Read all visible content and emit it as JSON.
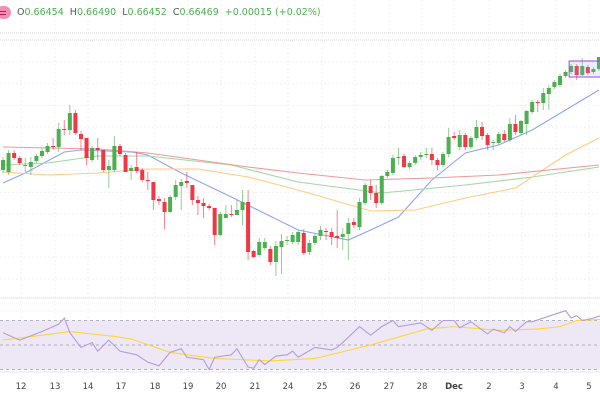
{
  "legend": {
    "open_label": "O",
    "open": "0.66454",
    "high_label": "H",
    "high": "0.66490",
    "low_label": "L",
    "low": "0.66452",
    "close_label": "C",
    "close": "0.66469",
    "change": "+0.00015 (+0.02%)",
    "symbol_icon": "symbol-badge-icon"
  },
  "colors": {
    "up": "#4caf50",
    "down": "#f23645",
    "ma_fast": "#90a4f4",
    "ma_mid": "#a5d6a7",
    "ma_slow": "#ffcc80",
    "ma_long": "#ef9a9a",
    "rsi": "#b39ddb",
    "rsi_ma": "#fdd835",
    "rsi_band": "#ede7f6"
  },
  "chart_data": [
    {
      "type": "candlestick",
      "x_tick_labels": [
        "12",
        "13",
        "14",
        "17",
        "18",
        "19",
        "20",
        "21",
        "24",
        "25",
        "26",
        "27",
        "28",
        "Dec",
        "2",
        "3",
        "4",
        "5"
      ],
      "candles": [
        [
          0.6532,
          0.6545,
          0.6529,
          0.6542
        ],
        [
          0.653,
          0.6552,
          0.6527,
          0.6549
        ],
        [
          0.6549,
          0.6552,
          0.6542,
          0.6544
        ],
        [
          0.6544,
          0.6546,
          0.6537,
          0.6539
        ],
        [
          0.6536,
          0.6544,
          0.653,
          0.6537
        ],
        [
          0.6535,
          0.6545,
          0.6527,
          0.654
        ],
        [
          0.6541,
          0.6548,
          0.6539,
          0.6546
        ],
        [
          0.6546,
          0.6554,
          0.6544,
          0.6551
        ],
        [
          0.655,
          0.6559,
          0.6548,
          0.6556
        ],
        [
          0.6556,
          0.6564,
          0.6552,
          0.6555
        ],
        [
          0.6555,
          0.6579,
          0.655,
          0.6573
        ],
        [
          0.6573,
          0.6582,
          0.6567,
          0.6572
        ],
        [
          0.6572,
          0.6597,
          0.6567,
          0.6589
        ],
        [
          0.6589,
          0.6592,
          0.6567,
          0.6569
        ],
        [
          0.6568,
          0.6571,
          0.6552,
          0.6563
        ],
        [
          0.6564,
          0.6564,
          0.6537,
          0.6544
        ],
        [
          0.6542,
          0.6556,
          0.654,
          0.6554
        ],
        [
          0.6554,
          0.6564,
          0.6542,
          0.6552
        ],
        [
          0.6552,
          0.6552,
          0.653,
          0.6532
        ],
        [
          0.6532,
          0.6542,
          0.6514,
          0.6536
        ],
        [
          0.6532,
          0.6566,
          0.653,
          0.6556
        ],
        [
          0.6556,
          0.6558,
          0.6546,
          0.6548
        ],
        [
          0.6547,
          0.6549,
          0.653,
          0.653
        ],
        [
          0.6531,
          0.6537,
          0.6522,
          0.6534
        ],
        [
          0.6535,
          0.655,
          0.6529,
          0.6531
        ],
        [
          0.6532,
          0.6534,
          0.652,
          0.6522
        ],
        [
          0.6522,
          0.653,
          0.6512,
          0.6521
        ],
        [
          0.652,
          0.652,
          0.6492,
          0.6502
        ],
        [
          0.6503,
          0.6506,
          0.6497,
          0.6501
        ],
        [
          0.65,
          0.6504,
          0.6473,
          0.649
        ],
        [
          0.649,
          0.6507,
          0.6489,
          0.6505
        ],
        [
          0.6505,
          0.6522,
          0.6502,
          0.6517
        ],
        [
          0.6516,
          0.6523,
          0.6492,
          0.652
        ],
        [
          0.6521,
          0.653,
          0.6514,
          0.6519
        ],
        [
          0.6517,
          0.6517,
          0.6497,
          0.6502
        ],
        [
          0.6502,
          0.6506,
          0.6487,
          0.6499
        ],
        [
          0.6499,
          0.6504,
          0.6484,
          0.6496
        ],
        [
          0.6496,
          0.6498,
          0.6492,
          0.6494
        ],
        [
          0.6494,
          0.6494,
          0.6457,
          0.6467
        ],
        [
          0.6467,
          0.649,
          0.6466,
          0.6488
        ],
        [
          0.6484,
          0.6497,
          0.6484,
          0.6488
        ],
        [
          0.6488,
          0.6497,
          0.6485,
          0.6487
        ],
        [
          0.6487,
          0.6502,
          0.6487,
          0.6492
        ],
        [
          0.6492,
          0.6512,
          0.6477,
          0.65
        ],
        [
          0.65,
          0.6512,
          0.6442,
          0.645
        ],
        [
          0.6451,
          0.6452,
          0.6444,
          0.6445
        ],
        [
          0.6447,
          0.6464,
          0.6445,
          0.646
        ],
        [
          0.6454,
          0.6464,
          0.6452,
          0.646
        ],
        [
          0.6453,
          0.6456,
          0.6437,
          0.644
        ],
        [
          0.644,
          0.6461,
          0.6426,
          0.6456
        ],
        [
          0.6455,
          0.6468,
          0.6428,
          0.6461
        ],
        [
          0.6461,
          0.6466,
          0.6457,
          0.6462
        ],
        [
          0.646,
          0.647,
          0.6458,
          0.6467
        ],
        [
          0.646,
          0.6472,
          0.6457,
          0.647
        ],
        [
          0.6469,
          0.6473,
          0.6447,
          0.6449
        ],
        [
          0.645,
          0.6462,
          0.6447,
          0.6459
        ],
        [
          0.6459,
          0.6468,
          0.6457,
          0.6466
        ],
        [
          0.6466,
          0.6476,
          0.6462,
          0.6472
        ],
        [
          0.6471,
          0.6474,
          0.6462,
          0.647
        ],
        [
          0.647,
          0.6474,
          0.6457,
          0.6465
        ],
        [
          0.6466,
          0.6492,
          0.6454,
          0.6464
        ],
        [
          0.6465,
          0.6474,
          0.6452,
          0.6468
        ],
        [
          0.6468,
          0.6484,
          0.6442,
          0.6479
        ],
        [
          0.648,
          0.6484,
          0.6474,
          0.6477
        ],
        [
          0.6475,
          0.6504,
          0.6472,
          0.65
        ],
        [
          0.6499,
          0.6519,
          0.6497,
          0.6517
        ],
        [
          0.6516,
          0.6522,
          0.6502,
          0.6509
        ],
        [
          0.6509,
          0.6517,
          0.6494,
          0.6499
        ],
        [
          0.6499,
          0.6527,
          0.6497,
          0.6526
        ],
        [
          0.6526,
          0.6532,
          0.6524,
          0.653
        ],
        [
          0.6529,
          0.6547,
          0.6527,
          0.6544
        ],
        [
          0.6544,
          0.6554,
          0.6537,
          0.6545
        ],
        [
          0.6546,
          0.6548,
          0.6534,
          0.6535
        ],
        [
          0.6535,
          0.6541,
          0.6533,
          0.6539
        ],
        [
          0.6539,
          0.6547,
          0.6537,
          0.6545
        ],
        [
          0.6545,
          0.655,
          0.6542,
          0.6547
        ],
        [
          0.6547,
          0.6554,
          0.6544,
          0.6548
        ],
        [
          0.6548,
          0.6554,
          0.6537,
          0.6542
        ],
        [
          0.6542,
          0.6544,
          0.6532,
          0.6537
        ],
        [
          0.6537,
          0.655,
          0.6535,
          0.6548
        ],
        [
          0.6548,
          0.6574,
          0.6545,
          0.6565
        ],
        [
          0.6566,
          0.657,
          0.6562,
          0.6564
        ],
        [
          0.6555,
          0.6572,
          0.6552,
          0.6567
        ],
        [
          0.6567,
          0.6569,
          0.6552,
          0.6555
        ],
        [
          0.6555,
          0.6566,
          0.6553,
          0.6564
        ],
        [
          0.6564,
          0.6582,
          0.6562,
          0.6575
        ],
        [
          0.6575,
          0.658,
          0.6562,
          0.6566
        ],
        [
          0.6567,
          0.6569,
          0.6552,
          0.6557
        ],
        [
          0.6559,
          0.6562,
          0.6552,
          0.656
        ],
        [
          0.6559,
          0.657,
          0.6557,
          0.6568
        ],
        [
          0.6568,
          0.6572,
          0.656,
          0.6562
        ],
        [
          0.6562,
          0.6584,
          0.656,
          0.6578
        ],
        [
          0.6578,
          0.6587,
          0.6567,
          0.657
        ],
        [
          0.6569,
          0.6582,
          0.6567,
          0.6581
        ],
        [
          0.6578,
          0.6592,
          0.6567,
          0.6591
        ],
        [
          0.659,
          0.6602,
          0.6588,
          0.66
        ],
        [
          0.66,
          0.6602,
          0.659,
          0.6599
        ],
        [
          0.6599,
          0.6614,
          0.6592,
          0.6609
        ],
        [
          0.6608,
          0.6617,
          0.6592,
          0.6614
        ],
        [
          0.6615,
          0.6622,
          0.6613,
          0.662
        ],
        [
          0.6617,
          0.6628,
          0.6615,
          0.6626
        ],
        [
          0.6626,
          0.6632,
          0.6624,
          0.663
        ],
        [
          0.663,
          0.6638,
          0.6628,
          0.6636
        ],
        [
          0.6636,
          0.6638,
          0.6622,
          0.6627
        ],
        [
          0.6627,
          0.6644,
          0.6626,
          0.6636
        ],
        [
          0.6635,
          0.6637,
          0.6627,
          0.6629
        ],
        [
          0.663,
          0.6635,
          0.6628,
          0.6633
        ],
        [
          0.6633,
          0.6644,
          0.6631,
          0.6645
        ],
        [
          0.66454,
          0.6649,
          0.66452,
          0.66469
        ]
      ],
      "moving_averages": [
        {
          "color": "#90a4f4",
          "points": [
            [
              0,
              0.6519
            ],
            [
              4,
              0.6529
            ],
            [
              11,
              0.655
            ],
            [
              14,
              0.6552
            ],
            [
              23,
              0.655
            ],
            [
              26,
              0.6547
            ],
            [
              32,
              0.6529
            ],
            [
              41,
              0.6505
            ],
            [
              53,
              0.6472
            ],
            [
              62,
              0.6462
            ],
            [
              66,
              0.6472
            ],
            [
              71,
              0.6485
            ],
            [
              77,
              0.6522
            ],
            [
              83,
              0.6549
            ],
            [
              89,
              0.6557
            ],
            [
              95,
              0.6572
            ],
            [
              101,
              0.6592
            ],
            [
              107,
              0.6612
            ]
          ]
        },
        {
          "color": "#a5d6a7",
          "points": [
            [
              0,
              0.6537
            ],
            [
              8,
              0.6539
            ],
            [
              17,
              0.6546
            ],
            [
              26,
              0.6546
            ],
            [
              41,
              0.6537
            ],
            [
              53,
              0.652
            ],
            [
              68,
              0.6509
            ],
            [
              83,
              0.6517
            ],
            [
              95,
              0.6525
            ],
            [
              107,
              0.6535
            ]
          ]
        },
        {
          "color": "#ffcc80",
          "points": [
            [
              0,
              0.653
            ],
            [
              8,
              0.6527
            ],
            [
              17,
              0.6529
            ],
            [
              26,
              0.6533
            ],
            [
              35,
              0.6533
            ],
            [
              44,
              0.6525
            ],
            [
              53,
              0.6512
            ],
            [
              66,
              0.6491
            ],
            [
              74,
              0.6492
            ],
            [
              83,
              0.6504
            ],
            [
              92,
              0.6514
            ],
            [
              101,
              0.6547
            ],
            [
              107,
              0.6564
            ]
          ]
        },
        {
          "color": "#ef9a9a",
          "points": [
            [
              0,
              0.6555
            ],
            [
              17,
              0.6553
            ],
            [
              26,
              0.6549
            ],
            [
              35,
              0.6542
            ],
            [
              44,
              0.6535
            ],
            [
              53,
              0.6529
            ],
            [
              65,
              0.6522
            ],
            [
              77,
              0.6524
            ],
            [
              89,
              0.6527
            ],
            [
              107,
              0.6537
            ]
          ]
        }
      ],
      "range_box": {
        "from_index": 102,
        "to_index": 108,
        "top": 0.6641,
        "bottom": 0.6625
      }
    },
    {
      "type": "line",
      "indicator": "rsi",
      "ylim": [
        0,
        100
      ],
      "band": [
        30,
        70
      ],
      "midline": 50,
      "rsi": [
        [
          0,
          60
        ],
        [
          3,
          54
        ],
        [
          7,
          61
        ],
        [
          10,
          67
        ],
        [
          11,
          72
        ],
        [
          12,
          60
        ],
        [
          14,
          48
        ],
        [
          16,
          52
        ],
        [
          17,
          45
        ],
        [
          19,
          54
        ],
        [
          21,
          45
        ],
        [
          24,
          42
        ],
        [
          26,
          36
        ],
        [
          28,
          33
        ],
        [
          30,
          44
        ],
        [
          32,
          47
        ],
        [
          33,
          40
        ],
        [
          36,
          38
        ],
        [
          37,
          30
        ],
        [
          38,
          40
        ],
        [
          41,
          42
        ],
        [
          42,
          47
        ],
        [
          44,
          32
        ],
        [
          45,
          31
        ],
        [
          46,
          38
        ],
        [
          47,
          34
        ],
        [
          49,
          41
        ],
        [
          51,
          42
        ],
        [
          52,
          45
        ],
        [
          53,
          40
        ],
        [
          56,
          48
        ],
        [
          59,
          46
        ],
        [
          60,
          48
        ],
        [
          61,
          52
        ],
        [
          64,
          65
        ],
        [
          66,
          58
        ],
        [
          68,
          65
        ],
        [
          70,
          70
        ],
        [
          71,
          65
        ],
        [
          75,
          68
        ],
        [
          77,
          62
        ],
        [
          79,
          70
        ],
        [
          81,
          70
        ],
        [
          82,
          64
        ],
        [
          84,
          69
        ],
        [
          87,
          59
        ],
        [
          88,
          63
        ],
        [
          90,
          60
        ],
        [
          91,
          65
        ],
        [
          92,
          61
        ],
        [
          94,
          69
        ],
        [
          95,
          69
        ],
        [
          97,
          72
        ],
        [
          101,
          78
        ],
        [
          102,
          72
        ],
        [
          103,
          74
        ],
        [
          104,
          70
        ],
        [
          106,
          72
        ],
        [
          108,
          75
        ]
      ],
      "rsi_ma": [
        [
          0,
          54
        ],
        [
          7,
          58
        ],
        [
          12,
          61
        ],
        [
          20,
          57
        ],
        [
          23,
          55
        ],
        [
          30,
          44
        ],
        [
          33,
          42
        ],
        [
          38,
          39
        ],
        [
          48,
          37
        ],
        [
          56,
          39
        ],
        [
          66,
          50
        ],
        [
          76,
          63
        ],
        [
          81,
          65
        ],
        [
          89,
          62
        ],
        [
          96,
          63
        ],
        [
          100,
          65
        ],
        [
          103,
          70
        ],
        [
          108,
          71
        ]
      ]
    }
  ]
}
